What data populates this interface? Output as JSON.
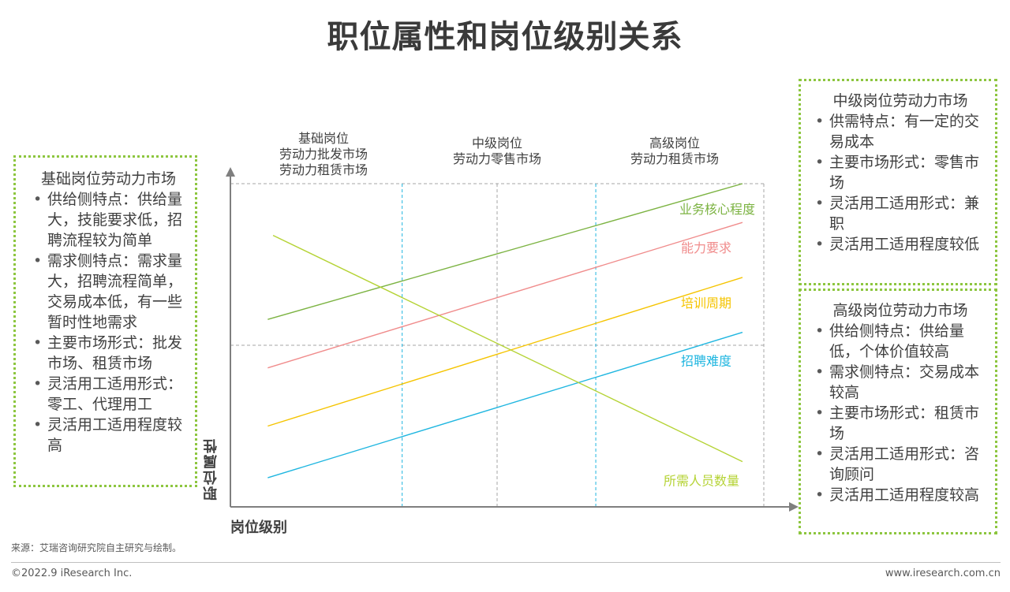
{
  "title": "职位属性和岗位级别关系",
  "boxes": {
    "basic": {
      "title": "基础岗位劳动力市场",
      "items": [
        "供给侧特点：供给量大，技能要求低，招聘流程较为简单",
        "需求侧特点：需求量大，招聘流程简单，交易成本低，有一些暂时性地需求",
        "主要市场形式：批发市场、租赁市场",
        "灵活用工适用形式：零工、代理用工",
        "灵活用工适用程度较高"
      ]
    },
    "mid": {
      "title": "中级岗位劳动力市场",
      "items": [
        "供需特点：有一定的交易成本",
        "主要市场形式：零售市场",
        "灵活用工适用形式：兼职",
        "灵活用工适用程度较低"
      ]
    },
    "high": {
      "title": "高级岗位劳动力市场",
      "items": [
        "供给侧特点：供给量低，个体价值较高",
        "需求侧特点：交易成本较高",
        "主要市场形式：租赁市场",
        "灵活用工适用形式：咨询顾问",
        "灵活用工适用程度较高"
      ]
    }
  },
  "columns": {
    "basic": [
      "基础岗位",
      "劳动力批发市场",
      "劳动力租赁市场"
    ],
    "mid": [
      "中级岗位",
      "劳动力零售市场"
    ],
    "high": [
      "高级岗位",
      "劳动力租赁市场"
    ]
  },
  "axes": {
    "x_label": "岗位级别",
    "y_label": "职位属性"
  },
  "chart_data": {
    "type": "line",
    "xlabel": "岗位级别",
    "ylabel": "职位属性",
    "categories": [
      "基础岗位",
      "中级岗位",
      "高级岗位"
    ],
    "xlim": [
      0,
      1
    ],
    "ylim": [
      0,
      1
    ],
    "grid": true,
    "series": [
      {
        "name": "业务核心程度",
        "color": "#7cb342",
        "x": [
          0.07,
          0.96
        ],
        "y": [
          0.58,
          1.0
        ]
      },
      {
        "name": "能力要求",
        "color": "#f08c8c",
        "x": [
          0.07,
          0.96
        ],
        "y": [
          0.43,
          0.88
        ]
      },
      {
        "name": "培训周期",
        "color": "#f5c400",
        "x": [
          0.07,
          0.96
        ],
        "y": [
          0.25,
          0.71
        ]
      },
      {
        "name": "招聘难度",
        "color": "#1fb6e0",
        "x": [
          0.07,
          0.96
        ],
        "y": [
          0.09,
          0.54
        ]
      },
      {
        "name": "所需人员数量",
        "color": "#b5d335",
        "x": [
          0.08,
          0.96
        ],
        "y": [
          0.84,
          0.14
        ]
      }
    ]
  },
  "footer": {
    "source": "来源：艾瑞咨询研究院自主研究与绘制。",
    "copyright": "©2022.9 iResearch Inc.",
    "website": "www.iresearch.com.cn"
  }
}
